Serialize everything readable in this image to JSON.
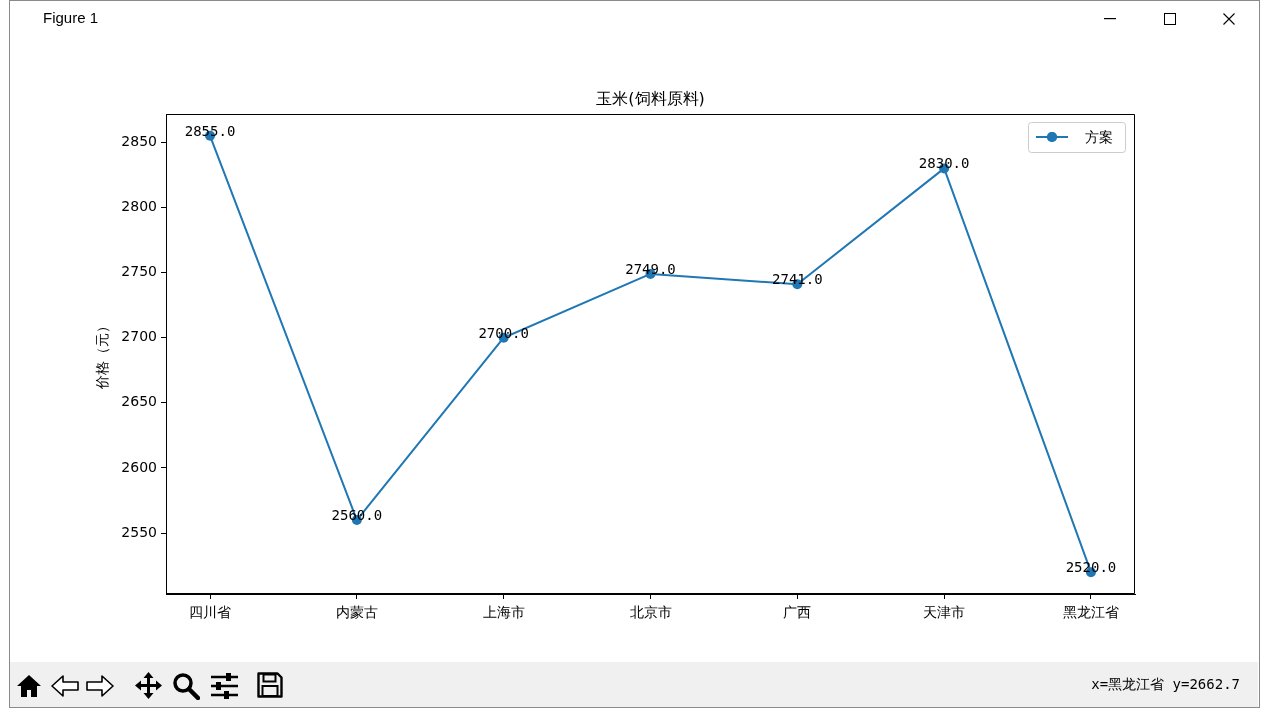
{
  "chart_data": {
    "type": "line",
    "title": "玉米(饲料原料)",
    "ylabel": "价格（元）",
    "categories": [
      "四川省",
      "内蒙古",
      "上海市",
      "北京市",
      "广西",
      "天津市",
      "黑龙江省"
    ],
    "series": [
      {
        "name": "方案",
        "color": "#1f77b4",
        "values": [
          2855,
          2560,
          2700,
          2749,
          2741,
          2830,
          2520
        ],
        "value_labels": [
          "2855.0",
          "2560.0",
          "2700.0",
          "2749.0",
          "2741.0",
          "2830.0",
          "2520.0"
        ]
      }
    ],
    "ylim": [
      2503.25,
      2871.75
    ],
    "yticks": [
      2550,
      2600,
      2650,
      2700,
      2750,
      2800,
      2850
    ],
    "grid": false,
    "legend": "top right",
    "marker": "circle",
    "line_style": "solid",
    "annotations": [
      "Figure 1",
      "x=黑龙江省 y=2662.7"
    ]
  }
}
